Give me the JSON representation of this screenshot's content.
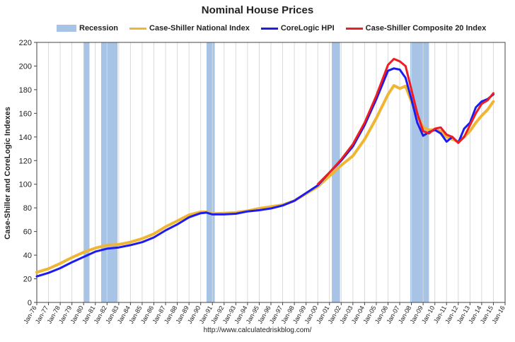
{
  "chart_data": {
    "type": "line",
    "title": "Nominal House Prices",
    "xlabel": "",
    "ylabel": "Case-Shiller and CoreLogic Indexes",
    "source": "http://www.calculatedriskblog.com/",
    "xlim": [
      1976.0,
      2016.0
    ],
    "ylim": [
      0,
      220
    ],
    "yticks": [
      0,
      20,
      40,
      60,
      80,
      100,
      120,
      140,
      160,
      180,
      200,
      220
    ],
    "xtick_labels": [
      "Jan-76",
      "Jan-77",
      "Jan-78",
      "Jan-79",
      "Jan-80",
      "Jan-81",
      "Jan-82",
      "Jan-83",
      "Jan-84",
      "Jan-85",
      "Jan-86",
      "Jan-87",
      "Jan-88",
      "Jan-89",
      "Jan-90",
      "Jan-91",
      "Jan-92",
      "Jan-93",
      "Jan-94",
      "Jan-95",
      "Jan-96",
      "Jan-97",
      "Jan-98",
      "Jan-99",
      "Jan-00",
      "Jan-01",
      "Jan-02",
      "Jan-03",
      "Jan-04",
      "Jan-05",
      "Jan-06",
      "Jan-07",
      "Jan-08",
      "Jan-09",
      "Jan-10",
      "Jan-11",
      "Jan-12",
      "Jan-13",
      "Jan-14",
      "Jan-15",
      "Jan-16"
    ],
    "grid": "vertical",
    "legend": "top",
    "recessions": {
      "name": "Recession",
      "color": "#a7c4e6",
      "periods": [
        [
          1980.0,
          1980.5
        ],
        [
          1981.5,
          1982.9
        ],
        [
          1990.5,
          1991.2
        ],
        [
          2001.2,
          2001.9
        ],
        [
          2007.9,
          2009.5
        ]
      ]
    },
    "series": [
      {
        "name": "Case-Shiller National Index",
        "color": "#f0b532",
        "width": 4,
        "x": [
          1976.0,
          1977.0,
          1978.0,
          1979.0,
          1980.0,
          1981.0,
          1982.0,
          1983.0,
          1984.0,
          1985.0,
          1986.0,
          1987.0,
          1988.0,
          1989.0,
          1990.0,
          1990.5,
          1991.0,
          1992.0,
          1993.0,
          1994.0,
          1995.0,
          1996.0,
          1997.0,
          1998.0,
          1999.0,
          2000.0,
          2001.0,
          2002.0,
          2003.0,
          2004.0,
          2005.0,
          2006.0,
          2006.5,
          2007.0,
          2007.5,
          2008.0,
          2008.5,
          2009.0,
          2009.5,
          2010.0,
          2010.5,
          2011.0,
          2011.5,
          2012.0,
          2012.5,
          2013.0,
          2013.5,
          2014.0,
          2014.5,
          2015.0
        ],
        "values": [
          25.5,
          28.5,
          33.0,
          38.0,
          42.5,
          46.0,
          48.5,
          49.0,
          51.0,
          54.0,
          58.0,
          64.0,
          69.0,
          74.0,
          76.5,
          76.5,
          75.0,
          75.5,
          76.0,
          77.5,
          79.5,
          81.0,
          82.5,
          86.0,
          92.0,
          98.0,
          107.0,
          116.0,
          124.0,
          138.0,
          156.0,
          176.0,
          183.5,
          181.0,
          183.0,
          170.0,
          158.0,
          148.0,
          146.0,
          146.0,
          145.0,
          140.0,
          138.0,
          136.0,
          140.0,
          145.0,
          152.0,
          158.0,
          163.0,
          170.0
        ]
      },
      {
        "name": "CoreLogic HPI",
        "color": "#1c1cf0",
        "width": 3,
        "x": [
          1976.0,
          1977.0,
          1978.0,
          1979.0,
          1980.0,
          1981.0,
          1982.0,
          1983.0,
          1984.0,
          1985.0,
          1986.0,
          1987.0,
          1988.0,
          1989.0,
          1990.0,
          1990.5,
          1991.0,
          1992.0,
          1993.0,
          1994.0,
          1995.0,
          1996.0,
          1997.0,
          1998.0,
          1999.0,
          2000.0,
          2001.0,
          2002.0,
          2003.0,
          2004.0,
          2005.0,
          2006.0,
          2006.5,
          2007.0,
          2007.5,
          2008.0,
          2008.5,
          2009.0,
          2009.5,
          2010.0,
          2010.5,
          2011.0,
          2011.5,
          2012.0,
          2012.5,
          2013.0,
          2013.5,
          2014.0,
          2014.5,
          2015.0
        ],
        "values": [
          22.0,
          25.0,
          29.0,
          34.0,
          38.5,
          43.0,
          45.5,
          46.5,
          48.5,
          51.0,
          55.0,
          61.0,
          66.0,
          72.0,
          75.5,
          76.0,
          74.5,
          74.5,
          75.0,
          77.0,
          78.0,
          79.5,
          82.0,
          86.0,
          92.5,
          99.0,
          110.0,
          120.0,
          132.0,
          150.0,
          172.0,
          196.0,
          198.0,
          197.0,
          190.0,
          172.0,
          152.0,
          141.0,
          144.0,
          146.0,
          143.0,
          136.0,
          140.0,
          135.0,
          147.0,
          152.0,
          165.0,
          170.0,
          172.0,
          176.0
        ]
      },
      {
        "name": "Case-Shiller Composite 20 Index",
        "color": "#ee1d23",
        "width": 3,
        "x": [
          2000.0,
          2001.0,
          2002.0,
          2003.0,
          2004.0,
          2005.0,
          2006.0,
          2006.5,
          2007.0,
          2007.5,
          2008.0,
          2008.5,
          2009.0,
          2009.5,
          2010.0,
          2010.5,
          2011.0,
          2011.5,
          2012.0,
          2012.5,
          2013.0,
          2013.5,
          2014.0,
          2014.5,
          2015.0
        ],
        "values": [
          100.0,
          110.0,
          121.0,
          134.0,
          152.0,
          175.0,
          201.0,
          206.0,
          204.0,
          200.0,
          180.0,
          160.0,
          145.0,
          143.0,
          147.0,
          148.0,
          142.0,
          140.0,
          135.0,
          140.0,
          150.0,
          160.0,
          168.0,
          171.0,
          177.0
        ]
      }
    ]
  }
}
